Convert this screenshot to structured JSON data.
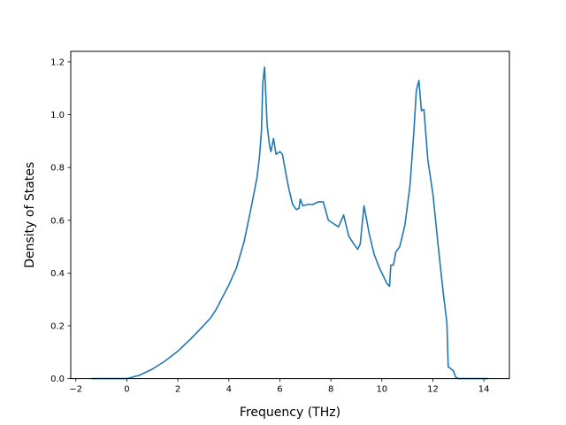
{
  "chart_data": {
    "type": "line",
    "title": "",
    "xlabel": "Frequency (THz)",
    "ylabel": "Density of States",
    "xlim": [
      -2.2,
      15.0
    ],
    "ylim": [
      0.0,
      1.24
    ],
    "xticks": [
      -2,
      0,
      2,
      4,
      6,
      8,
      10,
      12,
      14
    ],
    "xtick_labels": [
      "−2",
      "0",
      "2",
      "4",
      "6",
      "8",
      "10",
      "12",
      "14"
    ],
    "yticks": [
      0.0,
      0.2,
      0.4,
      0.6,
      0.8,
      1.0,
      1.2
    ],
    "ytick_labels": [
      "0.0",
      "0.2",
      "0.4",
      "0.6",
      "0.8",
      "1.0",
      "1.2"
    ],
    "grid": false,
    "legend": "none",
    "series": [
      {
        "color": "#1f77b4",
        "x": [
          -1.36,
          -0.5,
          0.0,
          0.5,
          1.0,
          1.5,
          2.0,
          2.5,
          3.0,
          3.3,
          3.5,
          4.0,
          4.3,
          4.6,
          4.9,
          5.1,
          5.2,
          5.28,
          5.33,
          5.4,
          5.5,
          5.6,
          5.65,
          5.75,
          5.85,
          6.0,
          6.1,
          6.25,
          6.35,
          6.5,
          6.65,
          6.75,
          6.8,
          6.9,
          7.1,
          7.3,
          7.5,
          7.7,
          7.9,
          8.3,
          8.5,
          8.55,
          8.7,
          8.9,
          9.05,
          9.15,
          9.3,
          9.5,
          9.7,
          9.9,
          10.2,
          10.3,
          10.35,
          10.45,
          10.55,
          10.7,
          10.9,
          11.1,
          11.25,
          11.35,
          11.45,
          11.55,
          11.65,
          11.8,
          12.0,
          12.2,
          12.4,
          12.55,
          12.6,
          12.8,
          12.9,
          13.0,
          13.5,
          14.15
        ],
        "y": [
          0.0,
          0.0,
          0.0,
          0.013,
          0.036,
          0.067,
          0.104,
          0.15,
          0.2,
          0.232,
          0.262,
          0.355,
          0.42,
          0.52,
          0.66,
          0.76,
          0.84,
          0.94,
          1.12,
          1.18,
          0.96,
          0.88,
          0.86,
          0.91,
          0.85,
          0.86,
          0.85,
          0.77,
          0.72,
          0.66,
          0.64,
          0.645,
          0.68,
          0.655,
          0.66,
          0.66,
          0.67,
          0.67,
          0.6,
          0.575,
          0.62,
          0.6,
          0.54,
          0.51,
          0.49,
          0.51,
          0.655,
          0.55,
          0.47,
          0.42,
          0.36,
          0.35,
          0.43,
          0.43,
          0.48,
          0.5,
          0.58,
          0.73,
          0.93,
          1.09,
          1.13,
          1.015,
          1.02,
          0.83,
          0.7,
          0.51,
          0.33,
          0.21,
          0.045,
          0.03,
          0.005,
          0.0,
          0.0,
          0.0
        ]
      }
    ]
  }
}
